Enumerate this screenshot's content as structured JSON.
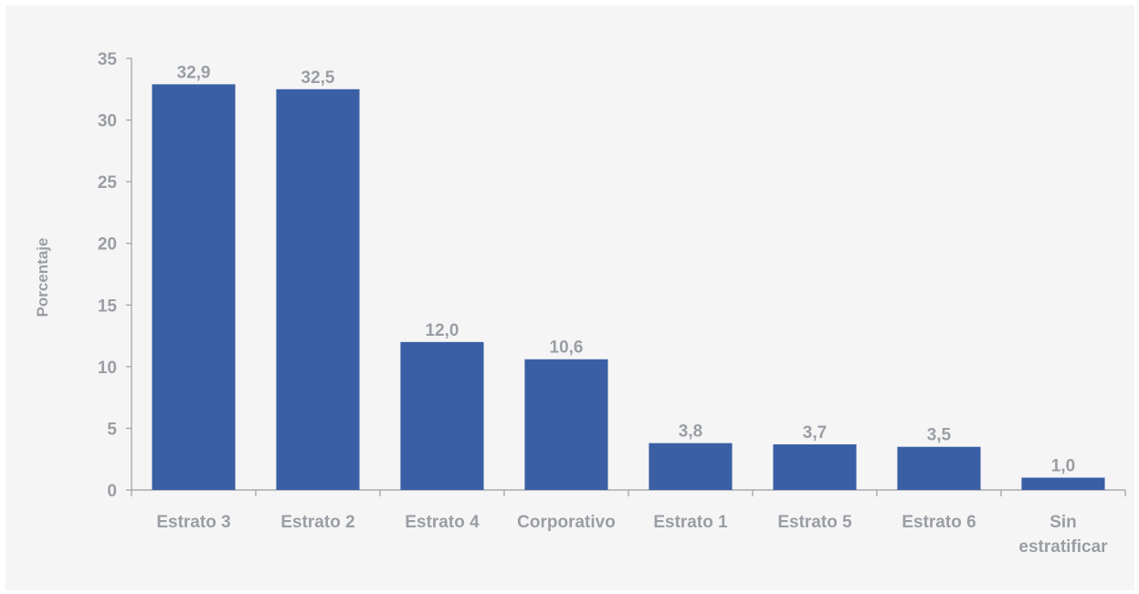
{
  "chart_data": {
    "type": "bar",
    "categories": [
      "Estrato 3",
      "Estrato 2",
      "Estrato 4",
      "Corporativo",
      "Estrato 1",
      "Estrato 5",
      "Estrato 6",
      "Sin estratificar"
    ],
    "values": [
      32.9,
      32.5,
      12.0,
      10.6,
      3.8,
      3.7,
      3.5,
      1.0
    ],
    "value_labels": [
      "32,9",
      "32,5",
      "12,0",
      "10,6",
      "3,8",
      "3,7",
      "3,5",
      "1,0"
    ],
    "title": "",
    "xlabel": "",
    "ylabel": "Porcentaje",
    "ylim": [
      0,
      35
    ],
    "yticks": [
      0,
      5,
      10,
      15,
      20,
      25,
      30,
      35
    ],
    "grid": false,
    "legend": "none",
    "colors": {
      "bar": "#3a5fa5",
      "text": "#9a9ea4",
      "background": "#f5f5f5"
    }
  }
}
